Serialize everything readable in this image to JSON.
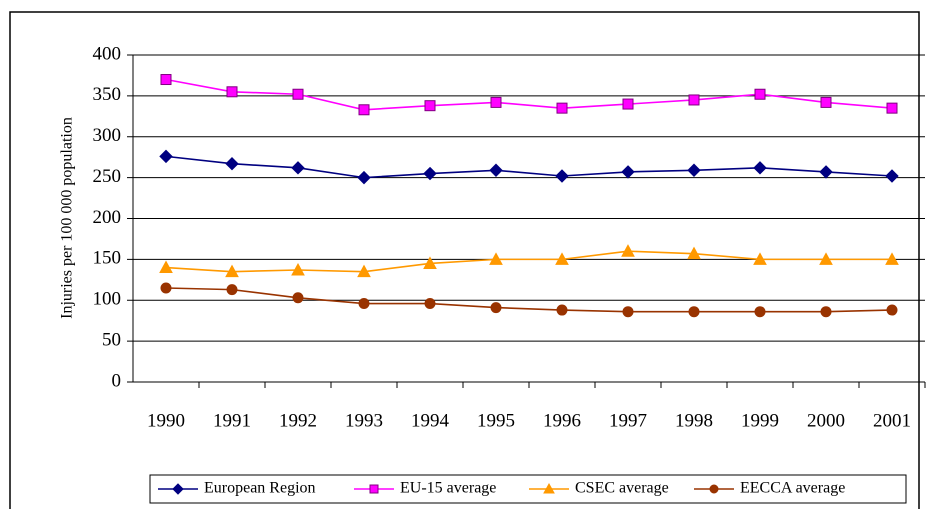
{
  "chart_data": {
    "type": "line",
    "y_label": "Injuries per 100 000 population",
    "categories": [
      "1990",
      "1991",
      "1992",
      "1993",
      "1994",
      "1995",
      "1996",
      "1997",
      "1998",
      "1999",
      "2000",
      "2001"
    ],
    "series": [
      {
        "name": "European Region",
        "color": "#000080",
        "marker": "diamond",
        "values": [
          276,
          267,
          262,
          250,
          255,
          259,
          252,
          257,
          259,
          262,
          257,
          252
        ]
      },
      {
        "name": "EU-15 average",
        "color": "#ff00ff",
        "marker": "square",
        "values": [
          370,
          355,
          352,
          333,
          338,
          342,
          335,
          340,
          345,
          352,
          342,
          335
        ]
      },
      {
        "name": "CSEC average",
        "color": "#ff9900",
        "marker": "triangle",
        "values": [
          140,
          135,
          137,
          135,
          145,
          150,
          150,
          160,
          157,
          150,
          150,
          150
        ]
      },
      {
        "name": "EECCA average",
        "color": "#993300",
        "marker": "circle",
        "values": [
          115,
          113,
          103,
          96,
          96,
          91,
          88,
          86,
          86,
          86,
          86,
          88
        ]
      }
    ],
    "ylim": [
      0,
      400
    ],
    "yticks": [
      0,
      50,
      100,
      150,
      200,
      250,
      300,
      350,
      400
    ],
    "grid": true,
    "legend": "bottom"
  }
}
